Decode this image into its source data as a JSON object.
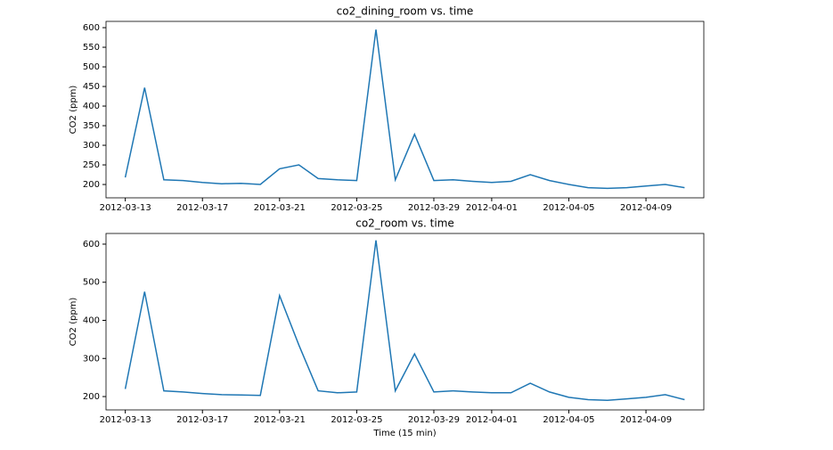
{
  "chart_data": [
    {
      "type": "line",
      "title": "co2_dining_room vs. time",
      "ylabel": "CO2 (ppm)",
      "x": [
        "2012-03-13",
        "2012-03-14",
        "2012-03-15",
        "2012-03-16",
        "2012-03-17",
        "2012-03-18",
        "2012-03-19",
        "2012-03-20",
        "2012-03-21",
        "2012-03-22",
        "2012-03-23",
        "2012-03-24",
        "2012-03-25",
        "2012-03-26",
        "2012-03-27",
        "2012-03-28",
        "2012-03-29",
        "2012-03-30",
        "2012-03-31",
        "2012-04-01",
        "2012-04-02",
        "2012-04-03",
        "2012-04-04",
        "2012-04-05",
        "2012-04-06",
        "2012-04-07",
        "2012-04-08",
        "2012-04-09",
        "2012-04-10",
        "2012-04-11"
      ],
      "values": [
        218,
        447,
        212,
        210,
        205,
        202,
        203,
        200,
        240,
        250,
        215,
        212,
        210,
        595,
        212,
        328,
        210,
        212,
        208,
        205,
        208,
        225,
        210,
        200,
        192,
        190,
        192,
        196,
        200,
        192
      ],
      "color": "#1f77b4",
      "xlim": [
        "2012-03-12",
        "2012-04-12"
      ],
      "xticks": [
        "2012-03-13",
        "2012-03-17",
        "2012-03-21",
        "2012-03-25",
        "2012-03-29",
        "2012-04-01",
        "2012-04-05",
        "2012-04-09"
      ],
      "ylim": [
        166,
        616
      ],
      "yticks": [
        200,
        250,
        300,
        350,
        400,
        450,
        500,
        550,
        600
      ]
    },
    {
      "type": "line",
      "title": "co2_room vs. time",
      "ylabel": "CO2 (ppm)",
      "xlabel": "Time (15 min)",
      "x": [
        "2012-03-13",
        "2012-03-14",
        "2012-03-15",
        "2012-03-16",
        "2012-03-17",
        "2012-03-18",
        "2012-03-19",
        "2012-03-20",
        "2012-03-21",
        "2012-03-22",
        "2012-03-23",
        "2012-03-24",
        "2012-03-25",
        "2012-03-26",
        "2012-03-27",
        "2012-03-28",
        "2012-03-29",
        "2012-03-30",
        "2012-03-31",
        "2012-04-01",
        "2012-04-02",
        "2012-04-03",
        "2012-04-04",
        "2012-04-05",
        "2012-04-06",
        "2012-04-07",
        "2012-04-08",
        "2012-04-09",
        "2012-04-10",
        "2012-04-11"
      ],
      "values": [
        220,
        475,
        215,
        212,
        208,
        205,
        204,
        203,
        465,
        335,
        215,
        210,
        212,
        610,
        215,
        312,
        212,
        215,
        212,
        210,
        210,
        235,
        212,
        198,
        192,
        190,
        194,
        198,
        205,
        192
      ],
      "color": "#1f77b4",
      "xlim": [
        "2012-03-12",
        "2012-04-12"
      ],
      "xticks": [
        "2012-03-13",
        "2012-03-17",
        "2012-03-21",
        "2012-03-25",
        "2012-03-29",
        "2012-04-01",
        "2012-04-05",
        "2012-04-09"
      ],
      "ylim": [
        165,
        628
      ],
      "yticks": [
        200,
        300,
        400,
        500,
        600
      ]
    }
  ]
}
